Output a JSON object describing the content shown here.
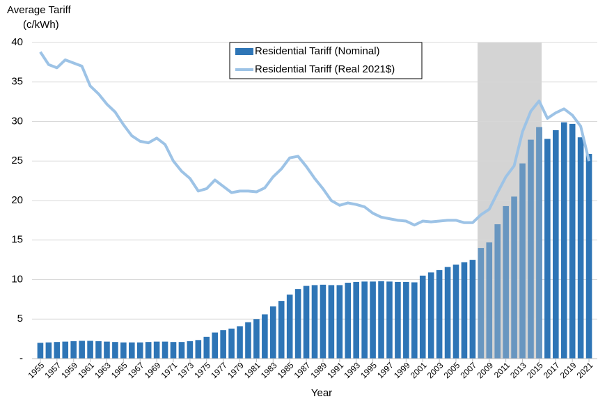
{
  "chart_data": {
    "type": "bar_line",
    "y_title_lines": [
      "Average Tariff",
      "(c/kWh)"
    ],
    "x_label": "Year",
    "x": [
      1955,
      1956,
      1957,
      1958,
      1959,
      1960,
      1961,
      1962,
      1963,
      1964,
      1965,
      1966,
      1967,
      1968,
      1969,
      1970,
      1971,
      1972,
      1973,
      1974,
      1975,
      1976,
      1977,
      1978,
      1979,
      1980,
      1981,
      1982,
      1983,
      1984,
      1985,
      1986,
      1987,
      1988,
      1989,
      1990,
      1991,
      1992,
      1993,
      1994,
      1995,
      1996,
      1997,
      1998,
      1999,
      2000,
      2001,
      2002,
      2003,
      2004,
      2005,
      2006,
      2007,
      2008,
      2009,
      2010,
      2011,
      2012,
      2013,
      2014,
      2015,
      2016,
      2017,
      2018,
      2019,
      2020,
      2021
    ],
    "xlim": [
      1954,
      2022
    ],
    "xticks": [
      1955,
      1957,
      1959,
      1961,
      1963,
      1965,
      1967,
      1969,
      1971,
      1973,
      1975,
      1977,
      1979,
      1981,
      1983,
      1985,
      1987,
      1989,
      1991,
      1993,
      1995,
      1997,
      1999,
      2001,
      2003,
      2005,
      2007,
      2009,
      2011,
      2013,
      2015,
      2017,
      2019,
      2021
    ],
    "ylim": [
      0,
      40
    ],
    "yticks": [
      {
        "value": 0,
        "label": "-"
      },
      5,
      10,
      15,
      20,
      25,
      30,
      35,
      40
    ],
    "grid": true,
    "highlight_xlim": [
      2007.6,
      2015.3
    ],
    "highlight_color": "#d4d4d4",
    "series": [
      {
        "name": "Residential Tariff (Nominal)",
        "type": "bar",
        "color": "#2e75b6",
        "values": [
          2.0,
          2.05,
          2.1,
          2.15,
          2.2,
          2.25,
          2.25,
          2.2,
          2.15,
          2.1,
          2.05,
          2.05,
          2.05,
          2.1,
          2.15,
          2.15,
          2.1,
          2.1,
          2.2,
          2.35,
          2.75,
          3.3,
          3.6,
          3.8,
          4.1,
          4.6,
          5.0,
          5.6,
          6.6,
          7.3,
          8.1,
          8.8,
          9.2,
          9.3,
          9.35,
          9.3,
          9.3,
          9.6,
          9.7,
          9.75,
          9.75,
          9.8,
          9.75,
          9.7,
          9.7,
          9.65,
          10.5,
          10.9,
          11.2,
          11.6,
          11.9,
          12.2,
          12.5,
          14.0,
          14.7,
          17.0,
          19.3,
          20.5,
          24.7,
          27.7,
          29.3,
          27.8,
          28.9,
          29.9,
          29.7,
          28.0,
          25.9
        ]
      },
      {
        "name": "Residential Tariff (Real 2021$)",
        "type": "line",
        "color": "#9dc3e6",
        "values": [
          38.8,
          37.2,
          36.8,
          37.8,
          37.4,
          37.0,
          34.5,
          33.5,
          32.2,
          31.2,
          29.6,
          28.2,
          27.5,
          27.3,
          27.9,
          27.1,
          25.0,
          23.7,
          22.8,
          21.2,
          21.5,
          22.6,
          21.8,
          21.0,
          21.2,
          21.2,
          21.1,
          21.6,
          23.0,
          24.0,
          25.4,
          25.6,
          24.3,
          22.8,
          21.5,
          20.0,
          19.4,
          19.7,
          19.5,
          19.2,
          18.4,
          17.9,
          17.7,
          17.5,
          17.4,
          16.9,
          17.4,
          17.3,
          17.4,
          17.5,
          17.5,
          17.2,
          17.2,
          18.2,
          18.9,
          21.0,
          23.0,
          24.4,
          28.7,
          31.3,
          32.6,
          30.4,
          31.1,
          31.6,
          30.8,
          29.4,
          25.0
        ]
      }
    ]
  }
}
